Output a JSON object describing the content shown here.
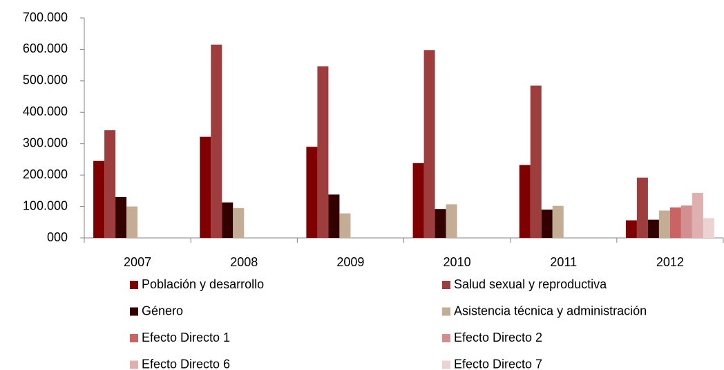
{
  "chart_data": {
    "type": "bar",
    "categories": [
      "2007",
      "2008",
      "2009",
      "2010",
      "2011",
      "2012"
    ],
    "series": [
      {
        "name": "Población y desarrollo",
        "color": "#7f0000",
        "values": [
          245000,
          322000,
          290000,
          238000,
          232000,
          56000
        ]
      },
      {
        "name": "Salud sexual y reproductiva",
        "color": "#9e3d3d",
        "values": [
          343000,
          615000,
          546000,
          598000,
          485000,
          192000
        ]
      },
      {
        "name": "Género",
        "color": "#330000",
        "values": [
          130000,
          113000,
          138000,
          92000,
          90000,
          58000
        ]
      },
      {
        "name": "Asistencia técnica y administración",
        "color": "#c4ad95",
        "values": [
          100000,
          95000,
          78000,
          107000,
          102000,
          87000
        ]
      },
      {
        "name": "Efecto Directo 1",
        "color": "#c96464",
        "values": [
          null,
          null,
          null,
          null,
          null,
          97000
        ]
      },
      {
        "name": "Efecto Directo 2",
        "color": "#d38f8f",
        "values": [
          null,
          null,
          null,
          null,
          null,
          103000
        ]
      },
      {
        "name": "Efecto Directo 6",
        "color": "#dfb0b0",
        "values": [
          null,
          null,
          null,
          null,
          null,
          143000
        ]
      },
      {
        "name": "Efecto Directo 7",
        "color": "#edd2d2",
        "values": [
          null,
          null,
          null,
          null,
          null,
          63000
        ]
      }
    ],
    "ylim": [
      0,
      700000
    ],
    "yticks": [
      {
        "value": 0,
        "label": "000"
      },
      {
        "value": 100000,
        "label": "100.000"
      },
      {
        "value": 200000,
        "label": "200.000"
      },
      {
        "value": 300000,
        "label": "300.000"
      },
      {
        "value": 400000,
        "label": "400.000"
      },
      {
        "value": 500000,
        "label": "500.000"
      },
      {
        "value": 600000,
        "label": "600.000"
      },
      {
        "value": 700000,
        "label": "700.000"
      }
    ],
    "legend": "bottom"
  }
}
